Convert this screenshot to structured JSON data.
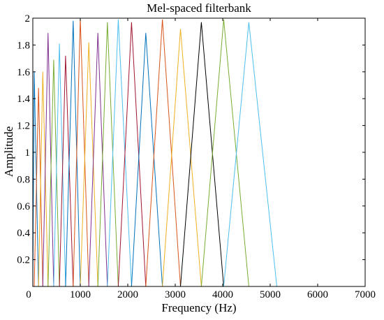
{
  "chart_data": {
    "type": "line",
    "title": "Mel-spaced filterbank",
    "xlabel": "Frequency (Hz)",
    "ylabel": "Amplitude",
    "xlim": [
      0,
      7000
    ],
    "ylim": [
      0,
      2
    ],
    "grid": false,
    "legend": "none",
    "x_ticks": [
      0,
      1000,
      2000,
      3000,
      4000,
      5000,
      6000,
      7000
    ],
    "x_tick_labels": [
      "0",
      "1000",
      "2000",
      "3000",
      "4000",
      "5000",
      "6000",
      "7000"
    ],
    "y_ticks": [
      0,
      0.2,
      0.4,
      0.6,
      0.8,
      1,
      1.2,
      1.4,
      1.6,
      1.8,
      2
    ],
    "y_tick_labels": [
      "0",
      "0.2",
      "0.4",
      "0.6",
      "0.8",
      "1",
      "1.2",
      "1.4",
      "1.6",
      "1.8",
      "2"
    ],
    "series": [
      {
        "color": "#0072bd",
        "x": [
          0,
          30,
          120
        ],
        "y": [
          0,
          1.6,
          0
        ]
      },
      {
        "color": "#d95319",
        "x": [
          30,
          120,
          210
        ],
        "y": [
          0,
          1.48,
          0
        ]
      },
      {
        "color": "#edb120",
        "x": [
          120,
          210,
          320
        ],
        "y": [
          0,
          1.6,
          0
        ]
      },
      {
        "color": "#7e2f8e",
        "x": [
          210,
          320,
          440
        ],
        "y": [
          0,
          1.89,
          0
        ]
      },
      {
        "color": "#77ac30",
        "x": [
          320,
          440,
          560
        ],
        "y": [
          0,
          1.69,
          0
        ]
      },
      {
        "color": "#4dbeee",
        "x": [
          440,
          560,
          690
        ],
        "y": [
          0,
          1.81,
          0
        ]
      },
      {
        "color": "#a2142f",
        "x": [
          560,
          690,
          850
        ],
        "y": [
          0,
          1.72,
          0
        ]
      },
      {
        "color": "#0072bd",
        "x": [
          690,
          850,
          1000
        ],
        "y": [
          0,
          1.98,
          0
        ]
      },
      {
        "color": "#d95319",
        "x": [
          850,
          1000,
          1180
        ],
        "y": [
          0,
          2.0,
          0
        ]
      },
      {
        "color": "#edb120",
        "x": [
          1000,
          1180,
          1370
        ],
        "y": [
          0,
          1.82,
          0
        ]
      },
      {
        "color": "#7e2f8e",
        "x": [
          1180,
          1370,
          1570
        ],
        "y": [
          0,
          1.89,
          0
        ]
      },
      {
        "color": "#77ac30",
        "x": [
          1370,
          1570,
          1800
        ],
        "y": [
          0,
          1.97,
          0
        ]
      },
      {
        "color": "#4dbeee",
        "x": [
          1570,
          1800,
          2080
        ],
        "y": [
          0,
          1.99,
          0
        ]
      },
      {
        "color": "#a2142f",
        "x": [
          1800,
          2080,
          2380
        ],
        "y": [
          0,
          1.97,
          0
        ]
      },
      {
        "color": "#0072bd",
        "x": [
          2080,
          2380,
          2730
        ],
        "y": [
          0,
          1.89,
          0
        ]
      },
      {
        "color": "#d95319",
        "x": [
          2380,
          2730,
          3110
        ],
        "y": [
          0,
          1.99,
          0
        ]
      },
      {
        "color": "#edb120",
        "x": [
          2730,
          3110,
          3550
        ],
        "y": [
          0,
          1.92,
          0
        ]
      },
      {
        "color": "#000000",
        "x": [
          3110,
          3550,
          4020
        ],
        "y": [
          0,
          1.97,
          0
        ]
      },
      {
        "color": "#77ac30",
        "x": [
          3550,
          4020,
          4550
        ],
        "y": [
          0,
          1.99,
          0
        ]
      },
      {
        "color": "#4dbeee",
        "x": [
          4020,
          4550,
          5140
        ],
        "y": [
          0,
          1.97,
          0
        ]
      }
    ]
  }
}
